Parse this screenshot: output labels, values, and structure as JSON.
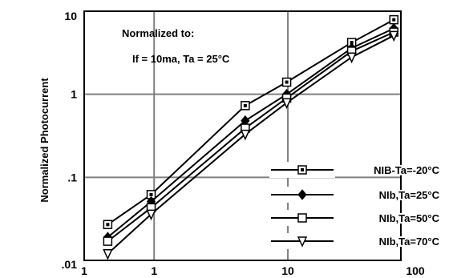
{
  "chart_data": {
    "type": "line",
    "title": "",
    "xlabel": "",
    "ylabel": "Normalized  Photocurrent",
    "x_scale": "log",
    "y_scale": "log",
    "xlim": [
      0.3,
      70
    ],
    "ylim": [
      0.01,
      10
    ],
    "x_tick_labels": [
      "1",
      "1",
      "10",
      "100"
    ],
    "y_tick_labels": [
      "10",
      "1",
      ".1",
      ".01"
    ],
    "annotation_lines": [
      "Normalized to:",
      "If = 10ma, Ta = 25°C"
    ],
    "grid": true,
    "legend_position": "bottom-right",
    "series": [
      {
        "name": "NIB-Ta=-20°C",
        "marker": "square-dot",
        "x": [
          0.45,
          0.95,
          4.8,
          9.8,
          30,
          62
        ],
        "y": [
          0.027,
          0.062,
          0.73,
          1.4,
          4.2,
          7.9
        ]
      },
      {
        "name": "NIb,Ta=25°C",
        "marker": "diamond-filled",
        "x": [
          0.45,
          0.95,
          4.8,
          9.8,
          30,
          62
        ],
        "y": [
          0.019,
          0.051,
          0.48,
          1.0,
          3.6,
          6.2
        ]
      },
      {
        "name": "NIb,Ta=50°C",
        "marker": "square-open",
        "x": [
          0.45,
          0.95,
          4.8,
          9.8,
          30,
          62
        ],
        "y": [
          0.017,
          0.043,
          0.39,
          0.9,
          3.3,
          5.6
        ]
      },
      {
        "name": "NIb,Ta=70°C",
        "marker": "triangle-down-open",
        "x": [
          0.45,
          0.95,
          4.8,
          9.8,
          30,
          62
        ],
        "y": [
          0.012,
          0.036,
          0.33,
          0.79,
          2.8,
          5.1
        ]
      }
    ],
    "colors": {
      "line": "#000000",
      "grid": "#808080",
      "background": "#ffffff"
    }
  }
}
